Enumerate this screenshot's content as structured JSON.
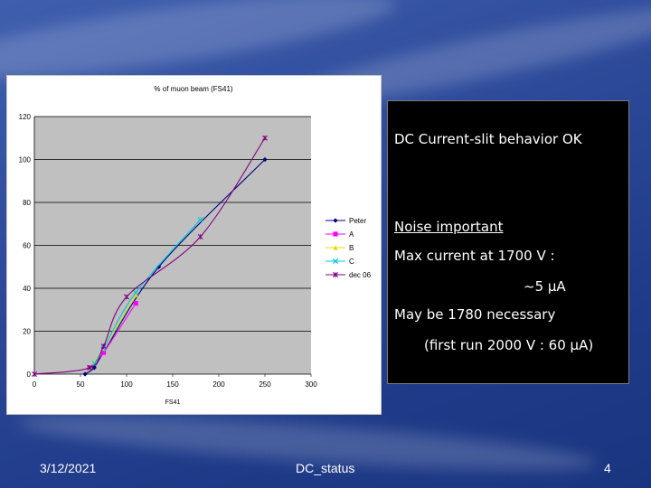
{
  "slide": {
    "date": "3/12/2021",
    "footer_title": "DC_status",
    "page_number": "4"
  },
  "textbox": {
    "line1": "DC Current-slit behavior OK",
    "line2": "Noise important",
    "line3": "Max current at 1700 V :",
    "line4": "~5 µA",
    "line5": "May be 1780 necessary",
    "line6": "(first run 2000 V : 60 µA)"
  },
  "chart_data": {
    "type": "line",
    "title": "% of muon beam (FS41)",
    "xlabel": "FS41",
    "ylabel": "",
    "xlim": [
      0,
      300
    ],
    "ylim": [
      0,
      120
    ],
    "x_ticks": [
      0,
      50,
      100,
      150,
      200,
      250,
      300
    ],
    "y_ticks": [
      0,
      20,
      40,
      60,
      80,
      100,
      120
    ],
    "grid": "horizontal",
    "legend_position": "right",
    "series": [
      {
        "name": "Peter",
        "color": "#000080",
        "marker": "diamond",
        "x": [
          55,
          65,
          75,
          135,
          250
        ],
        "y": [
          0,
          3,
          10,
          50,
          100
        ]
      },
      {
        "name": "A",
        "color": "#ff00ff",
        "marker": "square",
        "x": [
          60,
          75,
          110
        ],
        "y": [
          3,
          10,
          33
        ]
      },
      {
        "name": "B",
        "color": "#e0e000",
        "marker": "triangle",
        "x": [
          60,
          75,
          110
        ],
        "y": [
          3,
          12,
          37
        ]
      },
      {
        "name": "C",
        "color": "#00c8e0",
        "marker": "x",
        "x": [
          65,
          75,
          110,
          180
        ],
        "y": [
          5,
          12,
          38,
          72
        ]
      },
      {
        "name": "dec 06",
        "color": "#800080",
        "marker": "star",
        "x": [
          0,
          60,
          75,
          100,
          180,
          250
        ],
        "y": [
          0,
          3,
          13,
          36,
          64,
          110
        ]
      }
    ]
  }
}
